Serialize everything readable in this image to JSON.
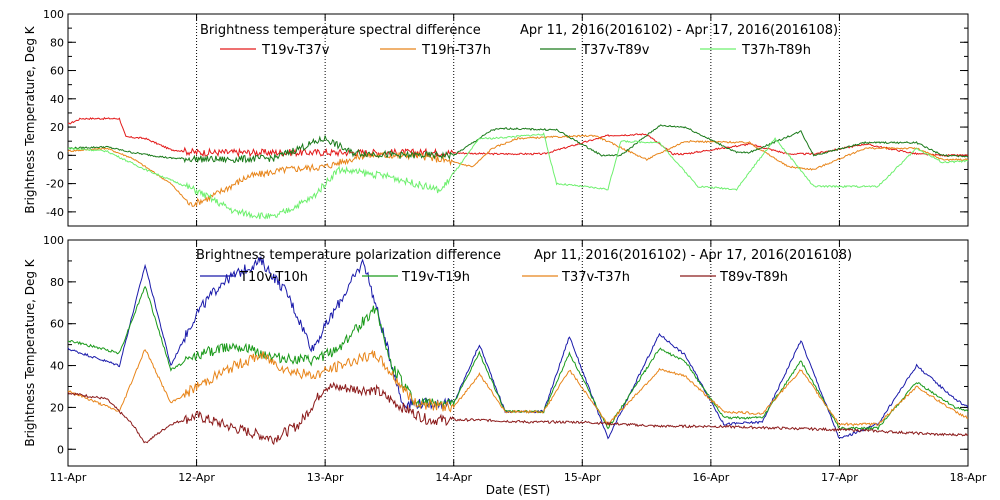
{
  "chart_data": [
    {
      "type": "line",
      "title": "Brightness temperature spectral difference",
      "date_range": "Apr 11, 2016(2016102) - Apr 17, 2016(2016108)",
      "xlabel": "",
      "ylabel": "Brightness Temperature, Deg K",
      "xlim": [
        0,
        7
      ],
      "ylim": [
        -50,
        100
      ],
      "yticks": [
        -40,
        -20,
        0,
        20,
        40,
        60,
        80,
        100
      ],
      "x_tick_positions": [
        0,
        1,
        2,
        3,
        4,
        5,
        6,
        7
      ],
      "vertical_gridlines_dotted": true,
      "legend_position": "top",
      "series": [
        {
          "name": "T19v-T37v",
          "color": "#e31a1a",
          "x": [
            0,
            0.1,
            0.4,
            0.45,
            0.6,
            0.8,
            1.0,
            1.5,
            2.0,
            2.5,
            2.9,
            3.3,
            3.7,
            4.2,
            4.5,
            4.7,
            4.8,
            5.3,
            5.6,
            5.8,
            6.2,
            6.6,
            6.8,
            7.0
          ],
          "values": [
            22,
            26,
            26,
            13,
            12,
            4,
            2,
            2,
            2,
            2,
            2,
            1,
            1,
            14,
            15,
            1,
            1,
            8,
            1,
            1,
            8,
            1,
            0,
            0
          ]
        },
        {
          "name": "T19h-T37h",
          "color": "#e8851a",
          "x": [
            0,
            0.3,
            0.5,
            0.8,
            0.95,
            1.1,
            1.4,
            1.7,
            2.0,
            2.3,
            2.7,
            2.9,
            3.15,
            3.3,
            3.5,
            3.8,
            4.1,
            4.5,
            4.8,
            5.3,
            5.6,
            5.8,
            6.2,
            6.6,
            6.8,
            7.0
          ],
          "values": [
            3,
            5,
            -2,
            -20,
            -35,
            -30,
            -15,
            -10,
            -8,
            0,
            0,
            -3,
            -8,
            5,
            12,
            13,
            14,
            -3,
            10,
            9,
            -8,
            -10,
            5,
            5,
            -3,
            -3
          ]
        },
        {
          "name": "T37v-T89v",
          "color": "#1a7a1a",
          "x": [
            0,
            0.3,
            0.5,
            0.8,
            1.2,
            1.6,
            2.0,
            2.2,
            2.6,
            3.0,
            3.3,
            3.4,
            3.8,
            4.15,
            4.3,
            4.6,
            4.8,
            5.2,
            5.3,
            5.7,
            5.8,
            6.2,
            6.6,
            6.8,
            7.0
          ],
          "values": [
            5,
            6,
            2,
            -2,
            -3,
            -2,
            12,
            2,
            0,
            0,
            18,
            19,
            18,
            0,
            0,
            21,
            20,
            2,
            2,
            17,
            0,
            9,
            9,
            0,
            -1
          ]
        },
        {
          "name": "T37h-T89h",
          "color": "#6ef06e",
          "x": [
            0,
            0.3,
            0.6,
            1.0,
            1.3,
            1.6,
            1.9,
            2.1,
            2.5,
            2.9,
            3.2,
            3.3,
            3.7,
            3.8,
            4.2,
            4.3,
            4.6,
            4.9,
            5.2,
            5.5,
            5.8,
            6.3,
            6.6,
            6.8,
            7.0
          ],
          "values": [
            5,
            3,
            -10,
            -25,
            -40,
            -44,
            -30,
            -10,
            -15,
            -25,
            12,
            12,
            15,
            -20,
            -24,
            10,
            9,
            -22,
            -24,
            12,
            -22,
            -22,
            5,
            -5,
            -4
          ]
        }
      ]
    },
    {
      "type": "line",
      "title": "Brightness temperature polarization difference",
      "date_range": "Apr 11, 2016(2016102) - Apr 17, 2016(2016108)",
      "xlabel": "Date (EST)",
      "ylabel": "Brightness Temperature, Deg K",
      "xlim": [
        0,
        7
      ],
      "ylim": [
        -8,
        100
      ],
      "yticks": [
        0,
        20,
        40,
        60,
        80,
        100
      ],
      "x_tick_labels": [
        "11-Apr",
        "12-Apr",
        "13-Apr",
        "14-Apr",
        "15-Apr",
        "16-Apr",
        "17-Apr",
        "18-Apr"
      ],
      "x_tick_positions": [
        0,
        1,
        2,
        3,
        4,
        5,
        6,
        7
      ],
      "vertical_gridlines_dotted": true,
      "legend_position": "top",
      "series": [
        {
          "name": "T10v-T10h",
          "color": "#1a1aaa",
          "x": [
            0,
            0.4,
            0.6,
            0.8,
            1.0,
            1.2,
            1.5,
            1.7,
            1.9,
            2.3,
            2.6,
            3.0,
            3.2,
            3.4,
            3.7,
            3.9,
            4.2,
            4.6,
            4.8,
            5.1,
            5.4,
            5.7,
            6.0,
            6.3,
            6.6,
            6.9,
            7.0
          ],
          "values": [
            48,
            40,
            88,
            40,
            65,
            80,
            90,
            75,
            48,
            90,
            22,
            22,
            50,
            18,
            18,
            54,
            5,
            55,
            45,
            12,
            13,
            52,
            5,
            12,
            40,
            24,
            20
          ]
        },
        {
          "name": "T19v-T19h",
          "color": "#1a9a1a",
          "x": [
            0,
            0.4,
            0.6,
            0.8,
            1.0,
            1.3,
            1.6,
            1.9,
            2.1,
            2.4,
            2.5,
            2.7,
            3.0,
            3.2,
            3.4,
            3.7,
            3.9,
            4.2,
            4.6,
            4.8,
            5.1,
            5.4,
            5.7,
            6.0,
            6.3,
            6.6,
            6.9,
            7.0
          ],
          "values": [
            52,
            46,
            78,
            38,
            45,
            50,
            44,
            42,
            48,
            68,
            42,
            22,
            22,
            46,
            18,
            18,
            46,
            10,
            48,
            42,
            15,
            15,
            42,
            10,
            10,
            32,
            20,
            18
          ]
        },
        {
          "name": "T37v-T37h",
          "color": "#e8851a",
          "x": [
            0,
            0.4,
            0.6,
            0.8,
            1.0,
            1.3,
            1.5,
            1.7,
            1.9,
            2.2,
            2.4,
            2.7,
            3.0,
            3.2,
            3.4,
            3.7,
            3.9,
            4.2,
            4.6,
            4.8,
            5.1,
            5.4,
            5.7,
            6.0,
            6.3,
            6.6,
            6.9,
            7.0
          ],
          "values": [
            28,
            18,
            48,
            22,
            30,
            40,
            45,
            38,
            35,
            42,
            45,
            22,
            20,
            36,
            18,
            18,
            38,
            12,
            38,
            35,
            18,
            17,
            38,
            12,
            12,
            30,
            18,
            15
          ]
        },
        {
          "name": "T89v-T89h",
          "color": "#8b1a1a",
          "x": [
            0,
            0.3,
            0.5,
            0.6,
            0.8,
            1.0,
            1.3,
            1.6,
            1.8,
            2.0,
            2.4,
            2.6,
            2.8,
            3.2,
            3.6,
            4.0,
            4.6,
            5.0,
            5.6,
            6.2,
            6.8,
            7.0
          ],
          "values": [
            27,
            24,
            12,
            3,
            12,
            16,
            10,
            5,
            12,
            30,
            28,
            20,
            14,
            14,
            13,
            13,
            11,
            11,
            10,
            9,
            7,
            7
          ]
        }
      ]
    }
  ]
}
